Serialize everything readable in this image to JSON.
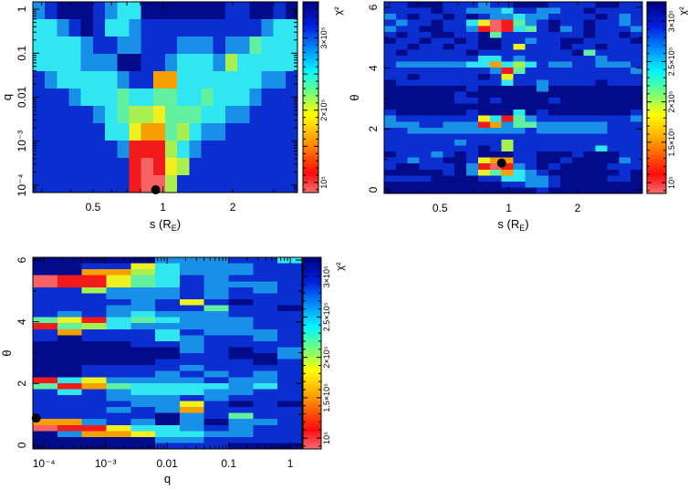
{
  "figure": {
    "colorbar_label": "χ²",
    "level_colors": [
      "#f86262",
      "#f21a1a",
      "#f5a000",
      "#eef020",
      "#a8f050",
      "#60f0a0",
      "#30e6f0",
      "#1890e8",
      "#0a2ed0",
      "#020c8a"
    ],
    "marker_color": "#000000"
  },
  "chart_data": [
    {
      "type": "heatmap",
      "title": "",
      "xlabel_parts": [
        "s (R",
        "E",
        ")"
      ],
      "ylabel": "q",
      "xscale": "log",
      "yscale": "log",
      "xlim": [
        0.275,
        3.8
      ],
      "ylim": [
        6.8e-05,
        1.47
      ],
      "xticks": [
        {
          "v": 0.5,
          "label": "0.5"
        },
        {
          "v": 1,
          "label": "1"
        },
        {
          "v": 2,
          "label": "2"
        }
      ],
      "yticks": [
        {
          "v": 1,
          "label": "1"
        },
        {
          "v": 0.1,
          "label": "0.1"
        },
        {
          "v": 0.01,
          "label": "0.01"
        },
        {
          "v": 0.001,
          "label": "10⁻³"
        },
        {
          "v": 0.0001,
          "label": "10⁻⁴"
        }
      ],
      "colorbar": {
        "label": "χ²",
        "range": [
          86000,
          350000
        ],
        "ticks": [
          {
            "v": 100000,
            "label": "10⁵"
          },
          {
            "v": 200000,
            "label": "2×10⁵"
          },
          {
            "v": 300000,
            "label": "3×10⁵"
          }
        ]
      },
      "level_chi2": [
        90000,
        110000,
        160000,
        190000,
        220000,
        250000,
        280000,
        300000,
        330000,
        350000
      ],
      "cells_levels_top_to_bottom": [
        "7899987669999999889989",
        "6678986678888888888766",
        "6666788778887778775666",
        "6666777998876667466666",
        "8766666788226666666778",
        "8887666566556656667888",
        "8888876544355566778888",
        "8888886632254677888888",
        "8888888711146788888888",
        "8888888810134888888888",
        "8888888810048888888888"
      ],
      "best_fit": {
        "x": 0.93,
        "y": 7.1e-05
      }
    },
    {
      "type": "heatmap",
      "title": "",
      "xlabel_parts": [
        "s (R",
        "E",
        ")"
      ],
      "ylabel": "θ",
      "xscale": "log",
      "yscale": "linear",
      "xlim": [
        0.285,
        3.84
      ],
      "ylim": [
        -0.12,
        6.18
      ],
      "xticks": [
        {
          "v": 0.5,
          "label": "0.5"
        },
        {
          "v": 1,
          "label": "1"
        },
        {
          "v": 2,
          "label": "2"
        }
      ],
      "yticks": [
        {
          "v": 0,
          "label": "0"
        },
        {
          "v": 2,
          "label": "2"
        },
        {
          "v": 4,
          "label": "4"
        },
        {
          "v": 6,
          "label": "6"
        }
      ],
      "colorbar": {
        "label": "χ²",
        "range": [
          86500,
          324000
        ],
        "ticks": [
          {
            "v": 100000,
            "label": "10⁵"
          },
          {
            "v": 150000,
            "label": "1.5×10⁵"
          },
          {
            "v": 200000,
            "label": "2×10⁵"
          },
          {
            "v": 250000,
            "label": "2.5×10⁵"
          },
          {
            "v": 300000,
            "label": "3×10⁵"
          }
        ]
      },
      "level_chi2": [
        90000,
        110000,
        160000,
        190000,
        220000,
        250000,
        280000,
        300000,
        330000,
        350000
      ],
      "cells_levels_top_to_bottom": [
        "8899988878899988889988",
        "8888988777688778898888",
        "7898898987767788889878",
        "8788988630157898898878",
        "7889988710165897898887",
        "8988998895888888898898",
        "9889889899887889988889",
        "8898898899838889889888",
        "8988888988888888958888",
        "8888888866878888887888",
        "8777777662646877887778",
        "8888888887158888888887",
        "8898888898388888888888",
        "9888888888688788889888",
        "9999999899999799999999",
        "9999998999999999999999",
        "9999998898999989999999",
        "9999999999999999999999",
        "8999999899969899999998",
        "7888888836157888888887",
        "7778877712755777777888",
        "8877777777778777777888",
        "8888888888888888888888",
        "8888887888488888888888",
        "8888888898488888886888",
        "9888789899988999899988",
        "8878899832288998999978",
        "8998889710178989999888",
        "9999989735267899999989",
        "8888999988667789999889",
        "9999999999887789999999",
        "9999999999999899999999"
      ],
      "best_fit": {
        "x": 0.93,
        "y": 0.88
      }
    },
    {
      "type": "heatmap",
      "title": "",
      "xlabel_parts": [
        "q",
        "",
        ""
      ],
      "ylabel": "θ",
      "xscale": "log",
      "yscale": "linear",
      "xlim": [
        6.6e-05,
        1.55
      ],
      "ylim": [
        -0.12,
        6.09
      ],
      "xticks": [
        {
          "v": 0.0001,
          "label": "10⁻⁴"
        },
        {
          "v": 0.001,
          "label": "10⁻³"
        },
        {
          "v": 0.01,
          "label": "0.01"
        },
        {
          "v": 0.1,
          "label": "0.1"
        },
        {
          "v": 1,
          "label": "1"
        }
      ],
      "yticks": [
        {
          "v": 0,
          "label": "0"
        },
        {
          "v": 2,
          "label": "2"
        },
        {
          "v": 4,
          "label": "4"
        },
        {
          "v": 6,
          "label": "6"
        }
      ],
      "colorbar": {
        "label": "χ²",
        "range": [
          86500,
          324000
        ],
        "ticks": [
          {
            "v": 100000,
            "label": "10⁵"
          },
          {
            "v": 150000,
            "label": "1.5×10⁵"
          },
          {
            "v": 200000,
            "label": "2×10⁵"
          },
          {
            "v": 250000,
            "label": "2.5×10⁵"
          },
          {
            "v": 300000,
            "label": "3×10⁵"
          }
        ]
      },
      "level_chi2": [
        90000,
        110000,
        160000,
        190000,
        220000,
        250000,
        280000,
        300000,
        330000,
        350000
      ],
      "cells_levels_top_to_bottom": [
        "99999777886",
        "99883677788",
        "99224677788",
        "01135687888",
        "01135687778",
        "88477787878",
        "88877787888",
        "88887838988",
        "88877885889",
        "87876777888",
        "53165677788",
        "15467777788",
        "82888687778",
        "89888678878",
        "99998878888",
        "99999978987",
        "99999988997",
        "99999888898",
        "99888878888",
        "99888787878",
        "16377778778",
        "51256666768",
        "86876667788",
        "88877787888",
        "88887738989",
        "88878728888",
        "88888978588",
        "22787979778",
        "01136678788",
        "97223667788",
        "99999778888",
        "99999888999"
      ],
      "best_fit": {
        "x": 7.5e-05,
        "y": 0.88
      }
    }
  ]
}
